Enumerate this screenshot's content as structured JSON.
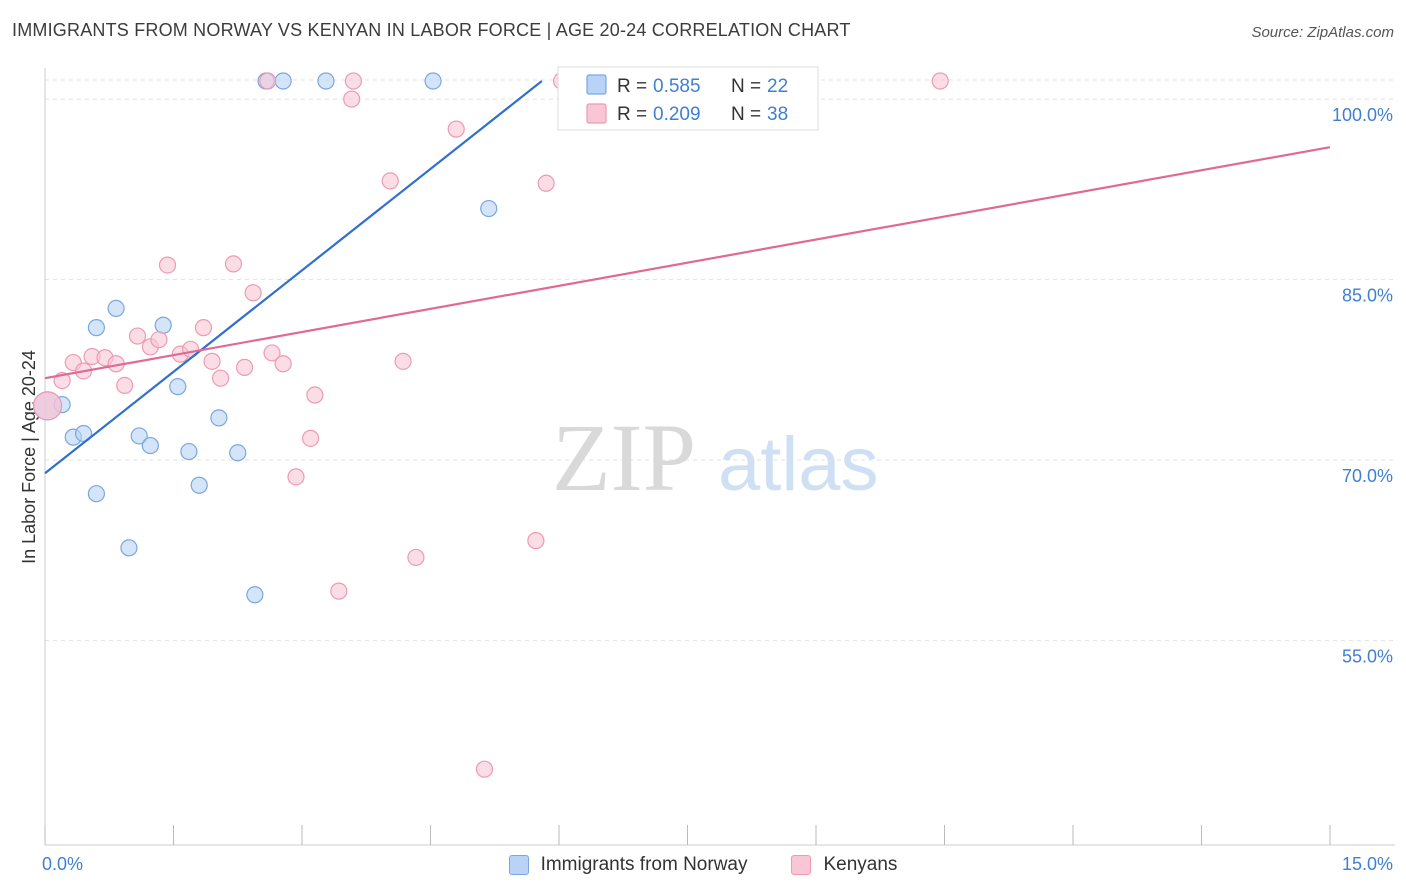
{
  "title": "IMMIGRANTS FROM NORWAY VS KENYAN IN LABOR FORCE | AGE 20-24 CORRELATION CHART",
  "source": "Source: ZipAtlas.com",
  "watermark": {
    "part1": "ZIP",
    "part2": "atlas"
  },
  "stats": [
    {
      "r_label": "R =",
      "r_value": "0.585",
      "n_label": "N =",
      "n_value": "22"
    },
    {
      "r_label": "R =",
      "r_value": "0.209",
      "n_label": "N =",
      "n_value": "38"
    }
  ],
  "chart_data": {
    "type": "scatter",
    "title": "IMMIGRANTS FROM NORWAY VS KENYAN IN LABOR FORCE | AGE 20-24 CORRELATION CHART",
    "xlabel": "",
    "ylabel": "In Labor Force | Age 20-24",
    "xlim": [
      0,
      15
    ],
    "ylim": [
      38,
      102
    ],
    "x_tick_labels": [
      "0.0%",
      "15.0%"
    ],
    "y_ticks": [
      55,
      70,
      85,
      100
    ],
    "y_tick_labels": [
      "55.0%",
      "70.0%",
      "85.0%",
      "100.0%"
    ],
    "legend": "bottom-center",
    "grid": true,
    "colors": {
      "norway_fill": "#b8d3f5",
      "norway_stroke": "#7aa7e0",
      "norway_line": "#2f6fcf",
      "kenyan_fill": "#f9c6d6",
      "kenyan_stroke": "#ee9ab5",
      "kenyan_line": "#e06a94",
      "axis_label": "#3f7fd4"
    },
    "series": [
      {
        "name": "Immigrants from Norway",
        "r": 0.585,
        "n": 22,
        "points": [
          {
            "x": 0.03,
            "y": 74.5
          },
          {
            "x": 0.2,
            "y": 74.6
          },
          {
            "x": 0.33,
            "y": 71.9
          },
          {
            "x": 0.45,
            "y": 72.2
          },
          {
            "x": 0.6,
            "y": 67.2
          },
          {
            "x": 0.6,
            "y": 81.0
          },
          {
            "x": 0.83,
            "y": 82.6
          },
          {
            "x": 0.98,
            "y": 62.7
          },
          {
            "x": 1.1,
            "y": 72.0
          },
          {
            "x": 1.23,
            "y": 71.2
          },
          {
            "x": 1.38,
            "y": 81.2
          },
          {
            "x": 1.55,
            "y": 76.1
          },
          {
            "x": 1.68,
            "y": 70.7
          },
          {
            "x": 1.8,
            "y": 67.9
          },
          {
            "x": 2.03,
            "y": 73.5
          },
          {
            "x": 2.25,
            "y": 70.6
          },
          {
            "x": 2.45,
            "y": 58.8
          },
          {
            "x": 2.58,
            "y": 101.5
          },
          {
            "x": 2.78,
            "y": 101.5
          },
          {
            "x": 3.28,
            "y": 101.5
          },
          {
            "x": 4.53,
            "y": 101.5
          },
          {
            "x": 5.18,
            "y": 90.9
          }
        ],
        "trend": {
          "x1": 0.0,
          "y1": 68.9,
          "x2": 5.8,
          "y2": 101.5
        }
      },
      {
        "name": "Kenyans",
        "r": 0.209,
        "n": 38,
        "points": [
          {
            "x": 0.03,
            "y": 74.5
          },
          {
            "x": 0.2,
            "y": 76.6
          },
          {
            "x": 0.33,
            "y": 78.1
          },
          {
            "x": 0.45,
            "y": 77.4
          },
          {
            "x": 0.55,
            "y": 78.6
          },
          {
            "x": 0.7,
            "y": 78.5
          },
          {
            "x": 0.83,
            "y": 78.0
          },
          {
            "x": 0.93,
            "y": 76.2
          },
          {
            "x": 1.08,
            "y": 80.3
          },
          {
            "x": 1.23,
            "y": 79.4
          },
          {
            "x": 1.33,
            "y": 80.0
          },
          {
            "x": 1.43,
            "y": 86.2
          },
          {
            "x": 1.58,
            "y": 78.8
          },
          {
            "x": 1.7,
            "y": 79.2
          },
          {
            "x": 1.85,
            "y": 81.0
          },
          {
            "x": 1.95,
            "y": 78.2
          },
          {
            "x": 2.05,
            "y": 76.8
          },
          {
            "x": 2.2,
            "y": 86.3
          },
          {
            "x": 2.33,
            "y": 77.7
          },
          {
            "x": 2.43,
            "y": 83.9
          },
          {
            "x": 2.6,
            "y": 101.5
          },
          {
            "x": 2.65,
            "y": 78.9
          },
          {
            "x": 2.78,
            "y": 78.0
          },
          {
            "x": 2.93,
            "y": 68.6
          },
          {
            "x": 3.1,
            "y": 71.8
          },
          {
            "x": 3.15,
            "y": 75.4
          },
          {
            "x": 3.43,
            "y": 59.1
          },
          {
            "x": 3.58,
            "y": 100.0
          },
          {
            "x": 3.6,
            "y": 101.5
          },
          {
            "x": 4.03,
            "y": 93.2
          },
          {
            "x": 4.18,
            "y": 78.2
          },
          {
            "x": 4.33,
            "y": 61.9
          },
          {
            "x": 4.8,
            "y": 97.5
          },
          {
            "x": 5.13,
            "y": 44.3
          },
          {
            "x": 5.73,
            "y": 63.3
          },
          {
            "x": 5.85,
            "y": 93.0
          },
          {
            "x": 6.03,
            "y": 101.5
          },
          {
            "x": 10.45,
            "y": 101.5
          }
        ],
        "trend": {
          "x1": 0.0,
          "y1": 76.8,
          "x2": 15.0,
          "y2": 96.0
        }
      }
    ]
  }
}
